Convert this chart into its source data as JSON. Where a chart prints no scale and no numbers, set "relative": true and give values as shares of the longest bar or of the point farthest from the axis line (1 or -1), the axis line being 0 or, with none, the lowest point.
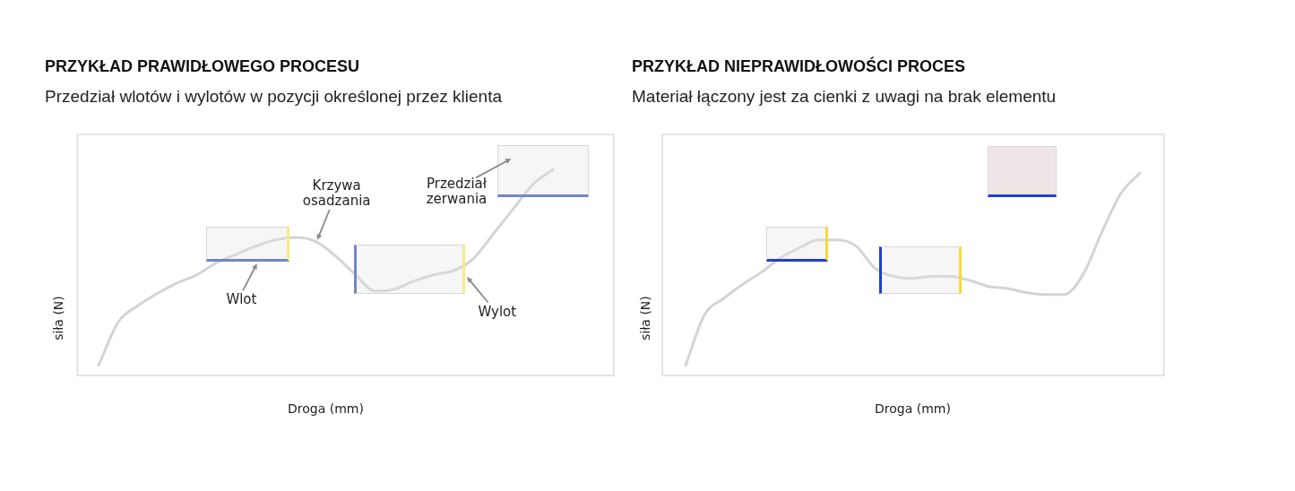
{
  "chart_data": [
    {
      "type": "line",
      "title": "PRZYKŁAD PRAWIDŁOWEGO PROCESU",
      "subtitle": "Przedział wlotów i wylotów w pozycji określonej przez klienta",
      "xlabel": "Droga (mm)",
      "ylabel": "siła (N)",
      "relative": true,
      "categories": [
        null,
        null,
        null,
        null,
        null,
        null,
        null,
        null,
        null,
        null,
        null,
        null,
        null,
        null,
        null,
        null,
        null,
        null,
        null,
        null,
        null,
        null,
        null,
        null
      ],
      "values": [
        0.05,
        0.26,
        0.34,
        0.4,
        0.45,
        0.49,
        0.55,
        0.59,
        0.63,
        0.66,
        0.67,
        0.65,
        0.58,
        0.49,
        0.41,
        0.42,
        0.46,
        0.49,
        0.51,
        0.57,
        0.69,
        0.81,
        0.93,
        1
      ],
      "color": "#d4d4d4",
      "marker": "none",
      "line_style": "solid",
      "annotations": [
        "Krzywa osadzania",
        "Wlot",
        "Wylot",
        "Przedział zerwania"
      ]
    },
    {
      "type": "line",
      "title": "PRZYKŁAD NIEPRAWIDŁOWOŚCI PROCES",
      "subtitle": "Materiał łączony jest za cienki z uwagi na brak elementu",
      "xlabel": "Droga (mm)",
      "ylabel": "siła (N)",
      "relative": true,
      "categories": [
        null,
        null,
        null,
        null,
        null,
        null,
        null,
        null,
        null,
        null,
        null,
        null,
        null,
        null,
        null,
        null,
        null,
        null,
        null,
        null,
        null,
        null,
        null,
        null,
        null
      ],
      "values": [
        0.05,
        0.3,
        0.38,
        0.45,
        0.51,
        0.58,
        0.63,
        0.67,
        0.67,
        0.64,
        0.53,
        0.49,
        0.48,
        0.49,
        0.49,
        0.47,
        0.44,
        0.43,
        0.41,
        0.4,
        0.4,
        0.5,
        0.71,
        0.9,
        1
      ],
      "color": "#d4d4d4",
      "marker": "none",
      "line_style": "solid"
    }
  ]
}
